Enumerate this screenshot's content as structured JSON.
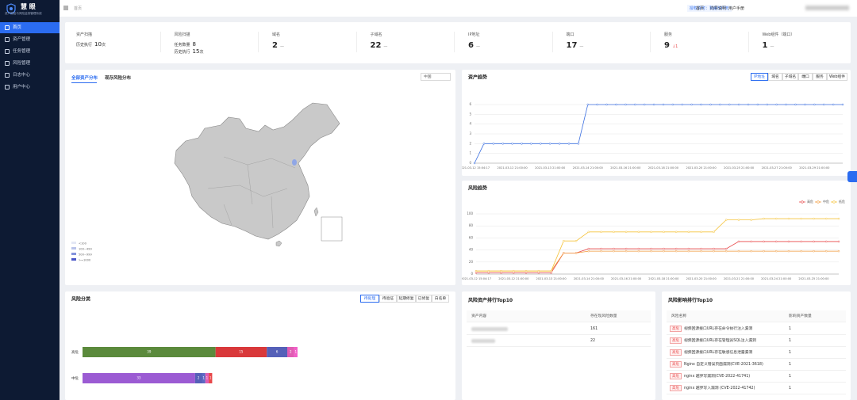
{
  "sidebar": {
    "logo": "慧  眼",
    "subtitle": "资产测绘与风险监测管理系统",
    "menu": [
      "首页",
      "资产管理",
      "任务管理",
      "风险管理",
      "日志中心",
      "用户中心"
    ]
  },
  "topbar": {
    "breadcrumb": "首页",
    "license": "授权许可：剩余307天",
    "links": [
      "首页",
      "向导说明",
      "用户手册"
    ]
  },
  "stats": [
    {
      "label": "资产扫描",
      "items": [
        {
          "label": "历史执行",
          "value": 10,
          "unit": "次"
        }
      ]
    },
    {
      "label": "风险扫描",
      "items": [
        {
          "label": "任务数量",
          "value": 8
        },
        {
          "label": "历史执行",
          "value": 15,
          "unit": "次"
        }
      ]
    },
    {
      "label": "域名",
      "value": 2,
      "trend": "—"
    },
    {
      "label": "子域名",
      "value": 22,
      "trend": "—"
    },
    {
      "label": "IP地址",
      "value": 6,
      "trend": "—"
    },
    {
      "label": "端口",
      "value": 17,
      "trend": "—"
    },
    {
      "label": "服务",
      "value": 9,
      "trend": "↓1"
    },
    {
      "label": "Web组件（端口）",
      "value": 1,
      "trend": "—"
    }
  ],
  "map_panel": {
    "tabs": [
      "全部资产分布",
      "现存风险分布"
    ],
    "select": "中国",
    "legend": [
      "<100",
      "100~499",
      "500~999",
      ">=1000"
    ]
  },
  "chart_data": [
    {
      "type": "line",
      "title": "资产趋势",
      "buttons": [
        "IP地址",
        "域名",
        "子域名",
        "端口",
        "服务",
        "Web组件"
      ],
      "categories": [
        "2021-03-12 15:04:17",
        null,
        null,
        null,
        "2021-03-12 21:00:00",
        null,
        null,
        null,
        "2021-03-13 21:00:00",
        null,
        null,
        null,
        "2021-03-14 21:00:00",
        null,
        null,
        null,
        "2021-03-16 21:00:00",
        null,
        null,
        null,
        "2021-03-18 21:00:00",
        null,
        null,
        null,
        "2021-03-20 21:00:00",
        null,
        null,
        null,
        "2021-03-25 21:00:00",
        null,
        null,
        null,
        "2021-03-27 21:00:00",
        null,
        null,
        null,
        "2021-03-29 21:00:00",
        null,
        null,
        null
      ],
      "series": [
        {
          "color": "#3b6fe0",
          "values": [
            0,
            2,
            2,
            2,
            2,
            2,
            2,
            2,
            2,
            2,
            2,
            2,
            6,
            6,
            6,
            6,
            6,
            6,
            6,
            6,
            6,
            6,
            6,
            6,
            6,
            6,
            6,
            6,
            6,
            6,
            6,
            6,
            6,
            6,
            6,
            6,
            6,
            6,
            6,
            6
          ]
        }
      ],
      "ylim": [
        0,
        6
      ],
      "yticks": [
        0,
        1,
        2,
        3,
        4,
        5,
        6
      ],
      "grid": true
    },
    {
      "type": "line",
      "title": "风险趋势",
      "categories": [
        "2021-03-12 15:04:17",
        null,
        null,
        "2021-03-12 21:00:00",
        null,
        null,
        "2021-03-13 21:00:00",
        null,
        null,
        "2021-03-14 21:00:00",
        null,
        null,
        "2021-03-16 21:00:00",
        null,
        null,
        "2021-03-18 21:00:00",
        null,
        null,
        "2021-03-20 21:00:00",
        null,
        null,
        "2021-03-21 21:00:00",
        null,
        null,
        "2021-03-24 21:00:00",
        null,
        null,
        "2021-03-25 21:00:00",
        null,
        null
      ],
      "series": [
        {
          "name": "高危",
          "color": "#e8484a",
          "values": [
            2,
            2,
            2,
            2,
            2,
            2,
            2,
            35,
            35,
            42,
            42,
            42,
            42,
            42,
            42,
            42,
            42,
            42,
            42,
            42,
            42,
            54,
            54,
            54,
            54,
            54,
            54,
            54,
            54,
            54
          ]
        },
        {
          "name": "中危",
          "color": "#f29a3a",
          "values": [
            5,
            5,
            5,
            5,
            5,
            5,
            5,
            35,
            35,
            38,
            38,
            38,
            38,
            38,
            38,
            38,
            38,
            38,
            38,
            38,
            38,
            38,
            38,
            38,
            38,
            38,
            38,
            38,
            38,
            38
          ]
        },
        {
          "name": "低危",
          "color": "#f5c33b",
          "values": [
            5,
            5,
            5,
            5,
            5,
            5,
            5,
            55,
            55,
            70,
            70,
            70,
            70,
            70,
            70,
            70,
            70,
            70,
            70,
            70,
            90,
            90,
            90,
            92,
            92,
            92,
            92,
            92,
            92,
            92
          ]
        }
      ],
      "ylim": [
        0,
        100
      ],
      "yticks": [
        0,
        20,
        40,
        60,
        80,
        100
      ],
      "grid": true,
      "legend": "top-right"
    },
    {
      "type": "bar",
      "orientation": "horizontal",
      "stacked": true,
      "title": "风险分类",
      "buttons": [
        "待处理",
        "待验证",
        "延期修复",
        "已修复",
        "白名单"
      ],
      "categories": [
        "高危",
        "中危"
      ],
      "series": [
        {
          "colors": [
            "#5b8a3c",
            "#9b5bd3"
          ],
          "values": [
            39,
            33
          ]
        },
        {
          "colors": [
            "#d9383a",
            "#5560b8"
          ],
          "values": [
            15,
            2
          ]
        },
        {
          "colors": [
            "#5560b8",
            "#5d68c4"
          ],
          "values": [
            6,
            1
          ]
        },
        {
          "colors": [
            "#e05cb3",
            "#e05cb3"
          ],
          "values": [
            2,
            1
          ]
        },
        {
          "colors": [
            "#f25ec8",
            "#e8484a"
          ],
          "values": [
            1,
            1
          ]
        }
      ]
    }
  ],
  "asset_top10": {
    "title": "风险资产排行Top10",
    "header": [
      "资产内容",
      "存在现风险数量"
    ],
    "counts": [
      161,
      22
    ]
  },
  "risk_top10": {
    "title": "风险影响排行Top10",
    "header": [
      "风险名称",
      "影响资产数量"
    ],
    "rows": [
      {
        "level": "高危",
        "name": "视频回源接口URL存在命令执行注入漏洞",
        "count": 1
      },
      {
        "level": "高危",
        "name": "视频回源接口URL存在管理员SQL注入漏洞",
        "count": 1
      },
      {
        "level": "高危",
        "name": "视频回源接口URL存在敏感信息泄露漏洞",
        "count": 1
      },
      {
        "level": "高危",
        "name": "Nginx 自定义错误页面漏洞(CVE-2021-3618)",
        "count": 1
      },
      {
        "level": "高危",
        "name": "nginx 越界写漏洞(CVE-2022-41741)",
        "count": 1
      },
      {
        "level": "高危",
        "name": "nginx 越界写入漏洞 (CVE-2022-41742)",
        "count": 1
      }
    ]
  }
}
